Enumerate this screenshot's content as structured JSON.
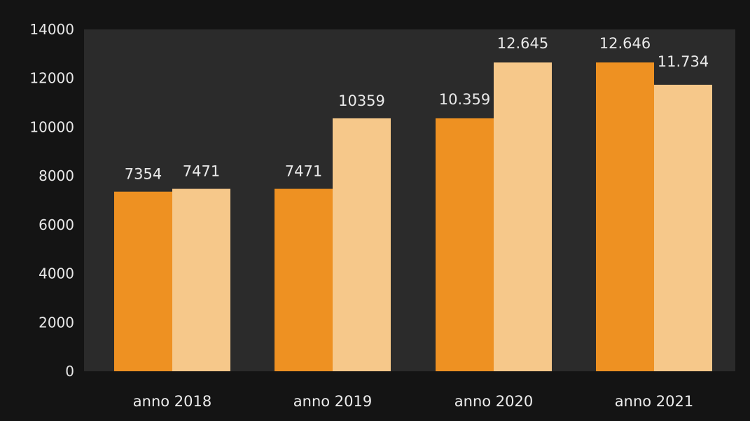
{
  "chart_data": {
    "type": "bar",
    "title": "",
    "xlabel": "",
    "ylabel": "",
    "ylim": [
      0,
      14000
    ],
    "yticks": [
      0,
      2000,
      4000,
      6000,
      8000,
      10000,
      12000,
      14000
    ],
    "ytick_labels": [
      "0",
      "2000",
      "4000",
      "6000",
      "8000",
      "10000",
      "12000",
      "14000"
    ],
    "grid": false,
    "legend": "none",
    "categories": [
      "anno 2018",
      "anno 2019",
      "anno 2020",
      "anno 2021"
    ],
    "series": [
      {
        "values": [
          7354,
          7471,
          10359,
          12646
        ],
        "labels": [
          "7354",
          "7471",
          "10.359",
          "12.646"
        ],
        "color": "#ee9122"
      },
      {
        "values": [
          7471,
          10359,
          12645,
          11734
        ],
        "labels": [
          "7471",
          "10359",
          "12.645",
          "11.734"
        ],
        "color": "#f6c88a"
      }
    ],
    "colors": {
      "plot_background": "#2b2b2b",
      "page_background": "#141414"
    }
  }
}
